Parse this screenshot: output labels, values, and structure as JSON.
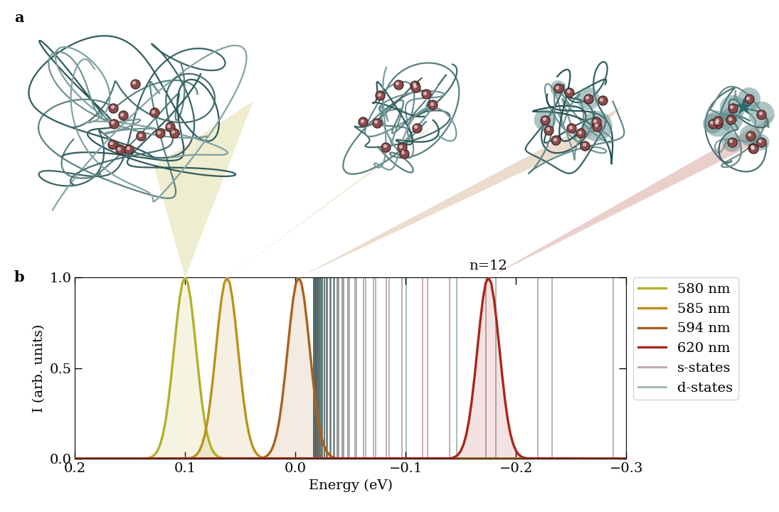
{
  "diagram": {
    "panel_label": "a"
  },
  "chart_data": {
    "type": "line",
    "panel_label": "b",
    "x_label": "Energy (eV)",
    "y_label": "I (arb. units)",
    "xlim": [
      0.2,
      -0.3
    ],
    "xticks": [
      0.2,
      0.1,
      0.0,
      {
        "value": -0.1,
        "label": "−0.1"
      },
      {
        "value": -0.2,
        "label": "−0.2"
      },
      {
        "value": -0.3,
        "label": "−0.3"
      }
    ],
    "ylim": [
      0.0,
      1.0
    ],
    "yticks": [
      0.0,
      0.5,
      1.0
    ],
    "legend": "upper left",
    "series": [
      {
        "name": "580 nm",
        "color": "#b3b02a",
        "x": [
          -0.3,
          0.065,
          0.0675,
          0.07,
          0.0725,
          0.075,
          0.0775,
          0.08,
          0.0825,
          0.085,
          0.0875,
          0.09,
          0.0925,
          0.095,
          0.0975,
          0.1,
          0.1025,
          0.105,
          0.1075,
          0.11,
          0.1125,
          0.115,
          0.1175,
          0.12,
          0.1225,
          0.125,
          0.1275,
          0.13,
          0.1325,
          0.135,
          0.2
        ],
        "values": [
          0.0,
          0.002,
          0.005,
          0.011,
          0.023,
          0.044,
          0.08,
          0.135,
          0.216,
          0.325,
          0.458,
          0.607,
          0.755,
          0.882,
          0.969,
          1.0,
          0.969,
          0.882,
          0.755,
          0.607,
          0.458,
          0.325,
          0.216,
          0.135,
          0.08,
          0.044,
          0.023,
          0.011,
          0.005,
          0.002,
          0.0
        ]
      },
      {
        "name": "585 nm",
        "color": "#b8921c",
        "x": [
          -0.3,
          0.027,
          0.0295,
          0.032,
          0.0345,
          0.037,
          0.0395,
          0.042,
          0.0445,
          0.047,
          0.0495,
          0.052,
          0.0545,
          0.057,
          0.0595,
          0.062,
          0.0645,
          0.067,
          0.0695,
          0.072,
          0.0745,
          0.077,
          0.0795,
          0.082,
          0.0845,
          0.087,
          0.0895,
          0.092,
          0.0945,
          0.097,
          0.2
        ],
        "values": [
          0.0,
          0.002,
          0.005,
          0.011,
          0.023,
          0.044,
          0.08,
          0.135,
          0.216,
          0.325,
          0.458,
          0.607,
          0.755,
          0.882,
          0.969,
          1.0,
          0.969,
          0.882,
          0.755,
          0.607,
          0.458,
          0.325,
          0.216,
          0.135,
          0.08,
          0.044,
          0.023,
          0.011,
          0.005,
          0.002,
          0.0
        ]
      },
      {
        "name": "594 nm",
        "color": "#a8621e",
        "x": [
          -0.3,
          -0.038,
          -0.0355,
          -0.033,
          -0.0305,
          -0.028,
          -0.0255,
          -0.023,
          -0.0205,
          -0.018,
          -0.0155,
          -0.013,
          -0.0105,
          -0.008,
          -0.0055,
          -0.003,
          -0.0005,
          0.002,
          0.0045,
          0.007,
          0.0095,
          0.012,
          0.0145,
          0.017,
          0.0195,
          0.022,
          0.0245,
          0.027,
          0.0295,
          0.032,
          0.2
        ],
        "values": [
          0.0,
          0.002,
          0.005,
          0.011,
          0.023,
          0.044,
          0.08,
          0.135,
          0.216,
          0.325,
          0.458,
          0.607,
          0.755,
          0.882,
          0.969,
          1.0,
          0.969,
          0.882,
          0.755,
          0.607,
          0.458,
          0.325,
          0.216,
          0.135,
          0.08,
          0.044,
          0.023,
          0.011,
          0.005,
          0.002,
          0.0
        ]
      },
      {
        "name": "620 nm",
        "color": "#a8261b",
        "x": [
          -0.3,
          -0.21,
          -0.2075,
          -0.205,
          -0.2025,
          -0.2,
          -0.1975,
          -0.195,
          -0.1925,
          -0.19,
          -0.1875,
          -0.185,
          -0.1825,
          -0.18,
          -0.1775,
          -0.175,
          -0.1725,
          -0.17,
          -0.1675,
          -0.165,
          -0.1625,
          -0.16,
          -0.1575,
          -0.155,
          -0.1525,
          -0.15,
          -0.1475,
          -0.145,
          -0.1425,
          -0.14,
          0.2
        ],
        "values": [
          0.0,
          0.002,
          0.005,
          0.011,
          0.023,
          0.044,
          0.08,
          0.135,
          0.216,
          0.325,
          0.458,
          0.607,
          0.755,
          0.882,
          0.969,
          1.0,
          0.969,
          0.882,
          0.755,
          0.607,
          0.458,
          0.325,
          0.216,
          0.135,
          0.08,
          0.044,
          0.023,
          0.011,
          0.005,
          0.002,
          0.0
        ]
      },
      {
        "name": "s-states",
        "type": "vline",
        "color": "#c4a2a6",
        "x": [
          -0.2883,
          -0.2197,
          -0.1729,
          -0.1397,
          -0.1151,
          -0.0966,
          -0.0821,
          -0.0707,
          -0.0615,
          -0.054,
          -0.0478,
          -0.0426,
          -0.0382,
          -0.0345,
          -0.0312,
          -0.0284,
          -0.026,
          -0.0239,
          -0.022,
          -0.0203,
          -0.0188
        ]
      },
      {
        "name": "d-states",
        "type": "vline",
        "color": "#a0b6b6",
        "x": [
          -0.2325,
          -0.1818,
          -0.1461,
          -0.12,
          -0.1003,
          -0.085,
          -0.073,
          -0.0634,
          -0.0556,
          -0.0491,
          -0.0437,
          -0.0391,
          -0.0352,
          -0.0319,
          -0.029,
          -0.0265,
          -0.0243,
          -0.0224,
          -0.0207,
          -0.0192,
          -0.0178,
          -0.0166
        ]
      }
    ],
    "annotations": [
      {
        "text": "n=12",
        "x": -0.175,
        "y": 1.0
      }
    ]
  }
}
